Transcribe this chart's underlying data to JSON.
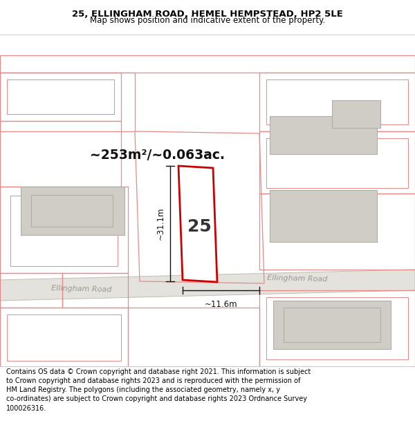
{
  "title_line1": "25, ELLINGHAM ROAD, HEMEL HEMPSTEAD, HP2 5LE",
  "title_line2": "Map shows position and indicative extent of the property.",
  "footer_text": "Contains OS data © Crown copyright and database right 2021. This information is subject to Crown copyright and database rights 2023 and is reproduced with the permission of HM Land Registry. The polygons (including the associated geometry, namely x, y co-ordinates) are subject to Crown copyright and database rights 2023 Ordnance Survey 100026316.",
  "area_label": "~253m²/~0.063ac.",
  "height_label": "~31.1m",
  "width_label": "~11.6m",
  "number_label": "25",
  "road_label1": "Ellingham Road",
  "road_label2": "Ellingham Road",
  "map_bg": "#f2f0ed",
  "road_color": "#e4e2dc",
  "road_line_color": "#c0bdb4",
  "building_fill": "#d0cdc6",
  "building_stroke": "#b0ada6",
  "neighbor_outline": "#e88888",
  "property_outline": "#cc0000",
  "property_fill": "#ffffff",
  "dim_color": "#111111",
  "title_bg": "#ffffff",
  "footer_bg": "#ffffff",
  "sep_color": "#cccccc"
}
